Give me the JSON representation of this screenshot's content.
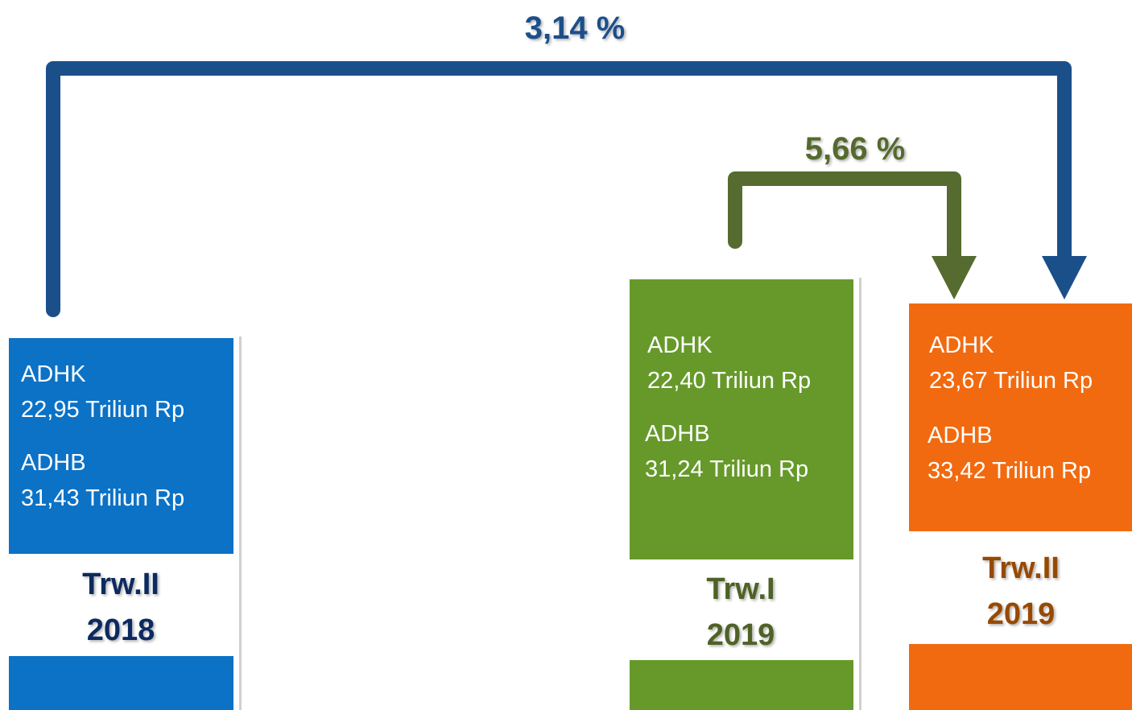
{
  "growth": [
    {
      "label": "3,14 %"
    },
    {
      "label": "5,66 %"
    }
  ],
  "boxes": [
    {
      "adhk_label": "ADHK",
      "adhk_value": "22,95 Triliun Rp",
      "adhb_label": "ADHB",
      "adhb_value": "31,43 Triliun Rp",
      "period": "Trw.II",
      "year": "2018"
    },
    {
      "adhk_label": "ADHK",
      "adhk_value": "22,40 Triliun Rp",
      "adhb_label": "ADHB",
      "adhb_value": "31,24 Triliun Rp",
      "period": "Trw.I",
      "year": "2019"
    },
    {
      "adhk_label": "ADHK",
      "adhk_value": "23,67 Triliun Rp",
      "adhb_label": "ADHB",
      "adhb_value": "33,42 Triliun Rp",
      "period": "Trw.II",
      "year": "2019"
    }
  ]
}
